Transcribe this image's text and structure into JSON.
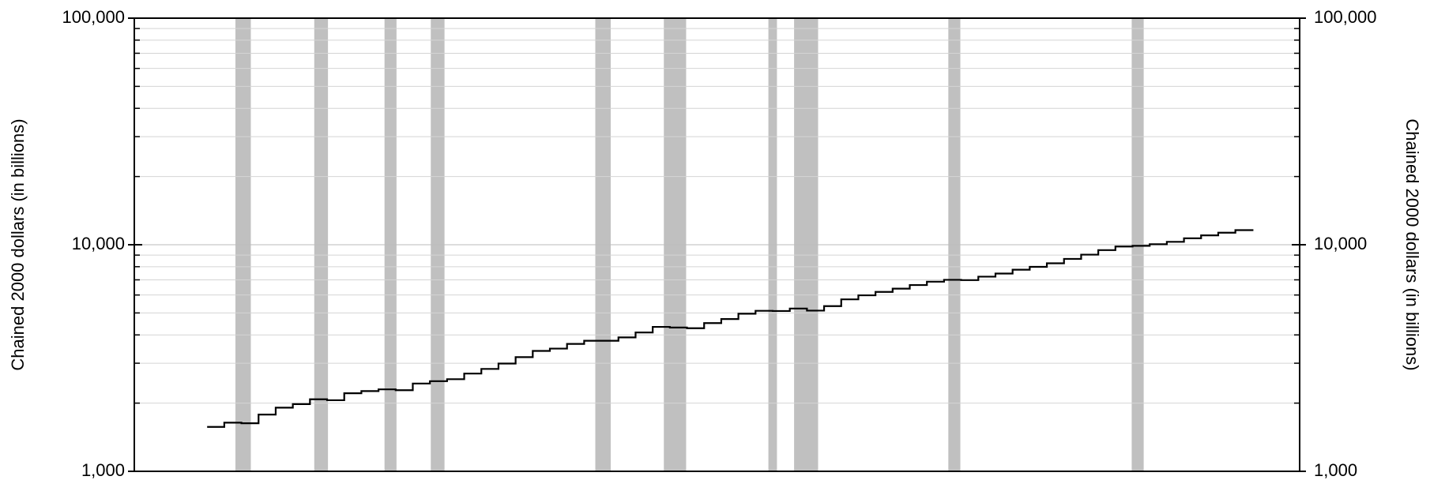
{
  "chart_data": {
    "type": "line",
    "y_label": "Chained 2000 dollars (in billions)",
    "log_y": true,
    "grid": true,
    "ylim": [
      1000,
      100000
    ],
    "yticks": [
      {
        "value": 1000,
        "label": "1,000"
      },
      {
        "value": 10000,
        "label": "10,000"
      },
      {
        "value": 100000,
        "label": "100,000"
      }
    ],
    "yminorticks": [
      2000,
      3000,
      4000,
      5000,
      6000,
      7000,
      8000,
      9000,
      20000,
      30000,
      40000,
      50000,
      60000,
      70000,
      80000,
      90000
    ],
    "xlim": [
      1943,
      2011
    ],
    "recession_color": "#c0c0c0",
    "recessions": [
      [
        1948.9,
        1949.8
      ],
      [
        1953.5,
        1954.3
      ],
      [
        1957.6,
        1958.3
      ],
      [
        1960.3,
        1961.1
      ],
      [
        1969.9,
        1970.8
      ],
      [
        1973.9,
        1975.2
      ],
      [
        1980.0,
        1980.5
      ],
      [
        1981.5,
        1982.9
      ],
      [
        1990.5,
        1991.2
      ],
      [
        2001.2,
        2001.9
      ]
    ],
    "x": [
      1947.25,
      1948.25,
      1949.25,
      1950.25,
      1951.25,
      1952.25,
      1953.25,
      1954.25,
      1955.25,
      1956.25,
      1957.25,
      1958.25,
      1959.25,
      1960.25,
      1961.25,
      1962.25,
      1963.25,
      1964.25,
      1965.25,
      1966.25,
      1967.25,
      1968.25,
      1969.25,
      1970.25,
      1971.25,
      1972.25,
      1973.25,
      1974.25,
      1975.25,
      1976.25,
      1977.25,
      1978.25,
      1979.25,
      1980.25,
      1981.25,
      1982.25,
      1983.25,
      1984.25,
      1985.25,
      1986.25,
      1987.25,
      1988.25,
      1989.25,
      1990.25,
      1991.25,
      1992.25,
      1993.25,
      1994.25,
      1995.25,
      1996.25,
      1997.25,
      1998.25,
      1999.25,
      2000.25,
      2001.25,
      2002.25,
      2003.25,
      2004.25,
      2005.25,
      2006.25,
      2007.25,
      2008.25
    ],
    "series": [
      {
        "color": "#000000",
        "values": [
          1570,
          1640,
          1630,
          1780,
          1910,
          1980,
          2080,
          2060,
          2210,
          2260,
          2300,
          2280,
          2440,
          2500,
          2550,
          2700,
          2830,
          2990,
          3190,
          3400,
          3480,
          3650,
          3770,
          3770,
          3900,
          4100,
          4340,
          4310,
          4280,
          4510,
          4700,
          4960,
          5110,
          5100,
          5230,
          5120,
          5360,
          5740,
          5980,
          6190,
          6400,
          6640,
          6870,
          7000,
          6980,
          7230,
          7460,
          7760,
          7990,
          8280,
          8660,
          9040,
          9470,
          9820,
          9890,
          10050,
          10300,
          10680,
          11000,
          11300,
          11600,
          11700
        ]
      }
    ]
  }
}
